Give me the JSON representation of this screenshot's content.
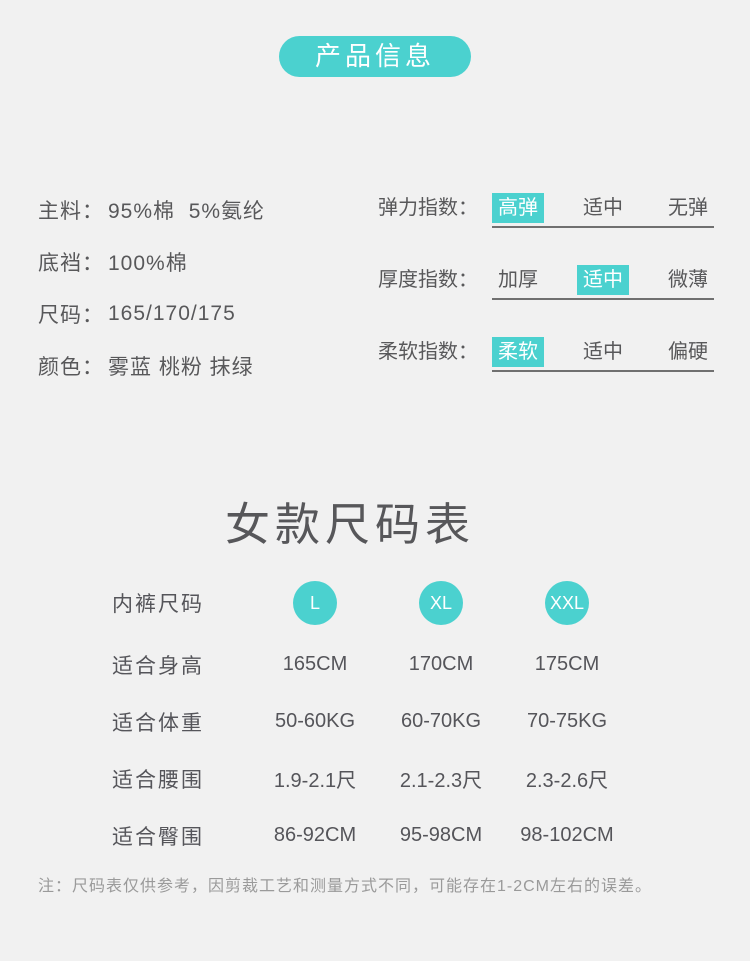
{
  "header": {
    "badge": "产品信息"
  },
  "specs": [
    {
      "label": "主料：",
      "value": "95%棉  5%氨纶"
    },
    {
      "label": "底裆：",
      "value": "100%棉"
    },
    {
      "label": "尺码：",
      "value": "165/170/175"
    },
    {
      "label": "颜色：",
      "value": "雾蓝 桃粉 抹绿"
    }
  ],
  "indices": [
    {
      "label": "弹力指数：",
      "options": [
        "高弹",
        "适中",
        "无弹"
      ],
      "selected": 0
    },
    {
      "label": "厚度指数：",
      "options": [
        "加厚",
        "适中",
        "微薄"
      ],
      "selected": 1
    },
    {
      "label": "柔软指数：",
      "options": [
        "柔软",
        "适中",
        "偏硬"
      ],
      "selected": 0
    }
  ],
  "size_chart": {
    "title": "女款尺码表",
    "header_label": "内裤尺码",
    "sizes": [
      "L",
      "XL",
      "XXL"
    ],
    "rows": [
      {
        "label": "适合身高",
        "values": [
          "165CM",
          "170CM",
          "175CM"
        ]
      },
      {
        "label": "适合体重",
        "values": [
          "50-60KG",
          "60-70KG",
          "70-75KG"
        ]
      },
      {
        "label": "适合腰围",
        "values": [
          "1.9-2.1尺",
          "2.1-2.3尺",
          "2.3-2.6尺"
        ]
      },
      {
        "label": "适合臀围",
        "values": [
          "86-92CM",
          "95-98CM",
          "98-102CM"
        ]
      }
    ]
  },
  "footer": {
    "note": "注：尺码表仅供参考，因剪裁工艺和测量方式不同，可能存在1-2CM左右的误差。"
  },
  "colors": {
    "accent": "#4BD1CF",
    "background": "#F1F1F1",
    "text": "#58585A",
    "note_text": "#9A9A9A"
  }
}
